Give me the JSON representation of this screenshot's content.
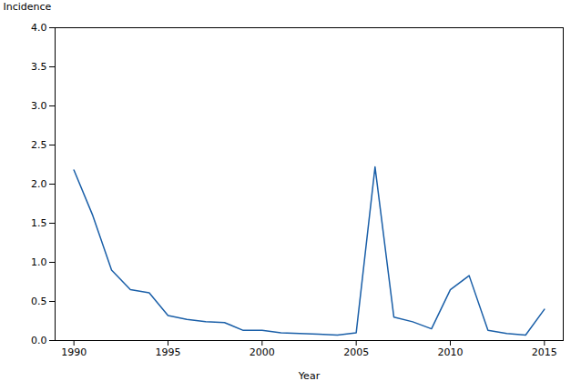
{
  "chart_data": {
    "type": "line",
    "x": [
      1990,
      1991,
      1992,
      1993,
      1994,
      1995,
      1996,
      1997,
      1998,
      1999,
      2000,
      2001,
      2002,
      2003,
      2004,
      2005,
      2006,
      2007,
      2008,
      2009,
      2010,
      2011,
      2012,
      2013,
      2014,
      2015
    ],
    "values": [
      2.18,
      1.6,
      0.9,
      0.65,
      0.61,
      0.32,
      0.27,
      0.24,
      0.23,
      0.13,
      0.13,
      0.1,
      0.09,
      0.08,
      0.07,
      0.1,
      2.22,
      0.3,
      0.24,
      0.15,
      0.65,
      0.83,
      0.13,
      0.09,
      0.07,
      0.4
    ],
    "color": "#1a5fa8",
    "xlabel": "Year",
    "ylabel": "Incidence",
    "xlim": [
      1989,
      2016
    ],
    "ylim": [
      0.0,
      4.0
    ],
    "xticks": [
      1990,
      1995,
      2000,
      2005,
      2010,
      2015
    ],
    "yticks": [
      {
        "value": 0,
        "label": "0.0"
      },
      0.5,
      {
        "value": 1,
        "label": "1.0"
      },
      1.5,
      {
        "value": 2,
        "label": "2.0"
      },
      2.5,
      {
        "value": 3,
        "label": "3.0"
      },
      3.5,
      {
        "value": 4,
        "label": "4.0"
      }
    ]
  }
}
